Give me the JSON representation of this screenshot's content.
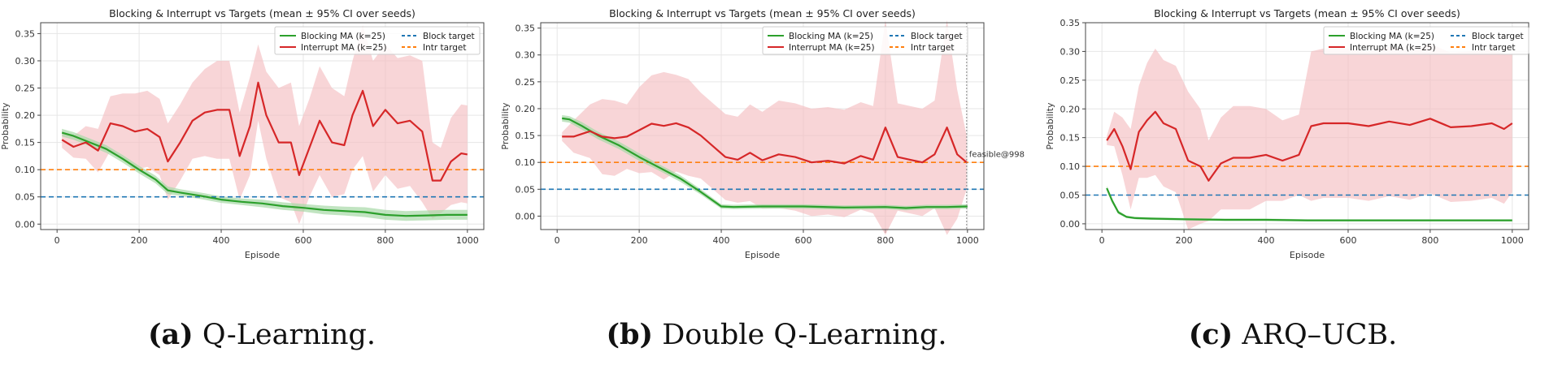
{
  "colors": {
    "blocking": "#2ca02c",
    "blocking_band": "#a6d8a6",
    "interrupt": "#d62728",
    "interrupt_band": "#f3bcbf",
    "block_target": "#1f77b4",
    "intr_target": "#ff7f0e",
    "grid": "#e6e6e6",
    "axis": "#444444"
  },
  "legend": {
    "blocking": "Blocking MA (k=25)",
    "interrupt": "Interrupt MA (k=25)",
    "block_target": "Block target",
    "intr_target": "Intr target"
  },
  "chart_data": [
    {
      "type": "line",
      "title": "Blocking & Interrupt vs Targets (mean ± 95% CI over seeds)",
      "xlabel": "Episode",
      "ylabel": "Probability",
      "xlim": [
        -40,
        1040
      ],
      "ylim": [
        -0.01,
        0.37
      ],
      "xticks": [
        0,
        200,
        400,
        600,
        800,
        1000
      ],
      "yticks": [
        "0.00",
        "0.05",
        "0.10",
        "0.15",
        "0.20",
        "0.25",
        "0.30",
        "0.35"
      ],
      "block_target": 0.05,
      "intr_target": 0.1,
      "series": [
        {
          "name": "Blocking MA (k=25)",
          "x": [
            12,
            40,
            80,
            120,
            160,
            200,
            240,
            270,
            300,
            350,
            400,
            450,
            500,
            550,
            600,
            650,
            700,
            750,
            800,
            850,
            900,
            950,
            1000
          ],
          "values": [
            0.168,
            0.162,
            0.15,
            0.138,
            0.12,
            0.1,
            0.082,
            0.062,
            0.058,
            0.052,
            0.045,
            0.041,
            0.038,
            0.033,
            0.03,
            0.026,
            0.024,
            0.022,
            0.017,
            0.015,
            0.016,
            0.017,
            0.017
          ],
          "ci": [
            0.007,
            0.007,
            0.007,
            0.007,
            0.007,
            0.007,
            0.007,
            0.007,
            0.006,
            0.006,
            0.006,
            0.006,
            0.007,
            0.007,
            0.007,
            0.008,
            0.008,
            0.009,
            0.009,
            0.009,
            0.009,
            0.009,
            0.009
          ]
        },
        {
          "name": "Interrupt MA (k=25)",
          "x": [
            12,
            40,
            70,
            100,
            130,
            160,
            190,
            220,
            250,
            270,
            300,
            330,
            360,
            390,
            420,
            445,
            470,
            490,
            510,
            540,
            570,
            590,
            615,
            640,
            670,
            700,
            720,
            745,
            770,
            800,
            830,
            860,
            890,
            915,
            935,
            960,
            985,
            1000
          ],
          "values": [
            0.155,
            0.142,
            0.15,
            0.135,
            0.185,
            0.18,
            0.17,
            0.175,
            0.16,
            0.115,
            0.15,
            0.19,
            0.205,
            0.21,
            0.21,
            0.125,
            0.18,
            0.26,
            0.2,
            0.15,
            0.15,
            0.09,
            0.14,
            0.19,
            0.15,
            0.145,
            0.2,
            0.245,
            0.18,
            0.21,
            0.185,
            0.19,
            0.17,
            0.08,
            0.08,
            0.115,
            0.13,
            0.128
          ],
          "ci": [
            0.015,
            0.02,
            0.03,
            0.04,
            0.05,
            0.06,
            0.07,
            0.07,
            0.07,
            0.07,
            0.07,
            0.07,
            0.08,
            0.09,
            0.09,
            0.08,
            0.09,
            0.07,
            0.08,
            0.1,
            0.11,
            0.09,
            0.09,
            0.1,
            0.1,
            0.09,
            0.1,
            0.12,
            0.12,
            0.12,
            0.12,
            0.12,
            0.13,
            0.07,
            0.06,
            0.08,
            0.09,
            0.09
          ]
        }
      ],
      "annotation": null
    },
    {
      "type": "line",
      "title": "Blocking & Interrupt vs Targets (mean ± 95% CI over seeds)",
      "xlabel": "Episode",
      "ylabel": "Probability",
      "xlim": [
        -40,
        1040
      ],
      "ylim": [
        -0.025,
        0.36
      ],
      "xticks": [
        0,
        200,
        400,
        600,
        800,
        1000
      ],
      "yticks": [
        "0.00",
        "0.05",
        "0.10",
        "0.15",
        "0.20",
        "0.25",
        "0.30",
        "0.35"
      ],
      "block_target": 0.05,
      "intr_target": 0.1,
      "series": [
        {
          "name": "Blocking MA (k=25)",
          "x": [
            12,
            30,
            60,
            100,
            150,
            200,
            250,
            300,
            350,
            400,
            430,
            500,
            600,
            700,
            800,
            850,
            900,
            950,
            1000
          ],
          "values": [
            0.182,
            0.18,
            0.168,
            0.15,
            0.132,
            0.11,
            0.09,
            0.07,
            0.045,
            0.018,
            0.017,
            0.018,
            0.018,
            0.016,
            0.017,
            0.015,
            0.017,
            0.017,
            0.018
          ],
          "ci": [
            0.006,
            0.006,
            0.007,
            0.007,
            0.007,
            0.007,
            0.006,
            0.006,
            0.005,
            0.004,
            0.004,
            0.004,
            0.004,
            0.004,
            0.004,
            0.004,
            0.004,
            0.004,
            0.004
          ]
        },
        {
          "name": "Interrupt MA (k=25)",
          "x": [
            12,
            40,
            80,
            110,
            140,
            170,
            200,
            230,
            260,
            290,
            320,
            350,
            380,
            410,
            440,
            470,
            500,
            540,
            580,
            620,
            660,
            700,
            740,
            770,
            800,
            830,
            860,
            890,
            920,
            950,
            975,
            998
          ],
          "values": [
            0.148,
            0.148,
            0.158,
            0.148,
            0.145,
            0.148,
            0.16,
            0.172,
            0.168,
            0.173,
            0.165,
            0.15,
            0.13,
            0.11,
            0.105,
            0.118,
            0.104,
            0.115,
            0.11,
            0.1,
            0.103,
            0.098,
            0.112,
            0.105,
            0.165,
            0.11,
            0.105,
            0.1,
            0.115,
            0.165,
            0.115,
            0.1
          ],
          "ci": [
            0.008,
            0.03,
            0.05,
            0.07,
            0.07,
            0.06,
            0.08,
            0.09,
            0.1,
            0.09,
            0.09,
            0.08,
            0.08,
            0.08,
            0.08,
            0.09,
            0.09,
            0.1,
            0.1,
            0.1,
            0.1,
            0.1,
            0.1,
            0.1,
            0.2,
            0.1,
            0.1,
            0.1,
            0.1,
            0.2,
            0.12,
            0.05
          ]
        }
      ],
      "annotation": {
        "text": "feasible@998",
        "x": 998,
        "y": 0.11
      }
    },
    {
      "type": "line",
      "title": "Blocking & Interrupt vs Targets (mean ± 95% CI over seeds)",
      "xlabel": "Episode",
      "ylabel": "Probability",
      "xlim": [
        -40,
        1040
      ],
      "ylim": [
        -0.01,
        0.35
      ],
      "xticks": [
        0,
        200,
        400,
        600,
        800,
        1000
      ],
      "yticks": [
        "0.00",
        "0.05",
        "0.10",
        "0.15",
        "0.20",
        "0.25",
        "0.30",
        "0.35"
      ],
      "block_target": 0.05,
      "intr_target": 0.1,
      "series": [
        {
          "name": "Blocking MA (k=25)",
          "x": [
            12,
            25,
            40,
            60,
            80,
            120,
            200,
            300,
            400,
            500,
            600,
            700,
            800,
            900,
            1000
          ],
          "values": [
            0.062,
            0.04,
            0.02,
            0.012,
            0.01,
            0.009,
            0.008,
            0.007,
            0.007,
            0.006,
            0.006,
            0.006,
            0.006,
            0.006,
            0.006
          ],
          "ci": [
            0.004,
            0.004,
            0.003,
            0.002,
            0.002,
            0.002,
            0.002,
            0.002,
            0.002,
            0.002,
            0.002,
            0.002,
            0.002,
            0.002,
            0.002
          ]
        },
        {
          "name": "Interrupt MA (k=25)",
          "x": [
            12,
            30,
            50,
            70,
            90,
            110,
            130,
            150,
            180,
            210,
            240,
            260,
            290,
            320,
            360,
            400,
            440,
            480,
            510,
            540,
            600,
            650,
            700,
            750,
            800,
            850,
            900,
            950,
            980,
            1000
          ],
          "values": [
            0.145,
            0.165,
            0.135,
            0.095,
            0.16,
            0.18,
            0.195,
            0.175,
            0.165,
            0.11,
            0.1,
            0.075,
            0.105,
            0.115,
            0.115,
            0.12,
            0.11,
            0.12,
            0.17,
            0.175,
            0.175,
            0.17,
            0.178,
            0.172,
            0.183,
            0.168,
            0.17,
            0.175,
            0.165,
            0.175
          ],
          "ci": [
            0.008,
            0.03,
            0.05,
            0.07,
            0.08,
            0.1,
            0.11,
            0.11,
            0.11,
            0.12,
            0.1,
            0.07,
            0.08,
            0.09,
            0.09,
            0.08,
            0.07,
            0.07,
            0.13,
            0.13,
            0.13,
            0.13,
            0.13,
            0.13,
            0.13,
            0.13,
            0.13,
            0.13,
            0.13,
            0.12
          ]
        }
      ],
      "annotation": null
    }
  ],
  "captions": [
    {
      "label": "(a)",
      "text": "Q-Learning."
    },
    {
      "label": "(b)",
      "text": "Double Q-Learning."
    },
    {
      "label": "(c)",
      "text": "ARQ–UCB."
    }
  ]
}
